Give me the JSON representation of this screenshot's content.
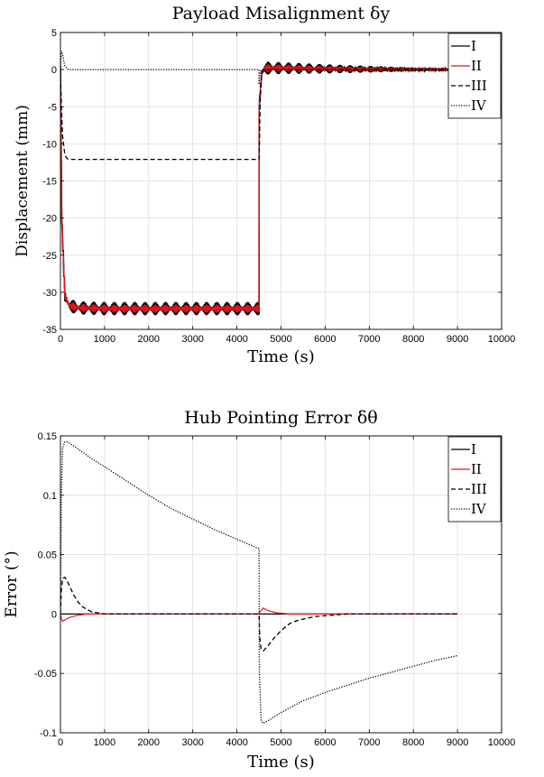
{
  "chart_data": [
    {
      "type": "line",
      "title": "Payload Misalignment δy",
      "xlabel": "Time (s)",
      "ylabel": "Displacement (mm)",
      "xlim": [
        0,
        10000
      ],
      "ylim": [
        -35,
        5
      ],
      "xticks": [
        0,
        1000,
        2000,
        3000,
        4000,
        5000,
        6000,
        7000,
        8000,
        9000,
        10000
      ],
      "yticks": [
        5,
        0,
        -5,
        -10,
        -15,
        -20,
        -25,
        -30,
        -35
      ],
      "grid": true,
      "legend_position": "top-right",
      "series": [
        {
          "name": "I",
          "color": "#000000",
          "style": "solid",
          "oscillating": true,
          "x": [
            0,
            30,
            100,
            200,
            400,
            1000,
            2000,
            3000,
            4500,
            4505,
            4560,
            4620,
            4700,
            5000,
            6000,
            7000,
            8000,
            9000
          ],
          "y": [
            0,
            -20,
            -30.5,
            -31.8,
            -32.1,
            -32.2,
            -32.2,
            -32.2,
            -32.2,
            -5,
            -0.5,
            0.1,
            0.2,
            0.2,
            0.1,
            0.05,
            0.02,
            0.0
          ]
        },
        {
          "name": "II",
          "color": "#e8141c",
          "style": "solid",
          "oscillating": true,
          "x": [
            0,
            30,
            100,
            200,
            400,
            1000,
            2000,
            3000,
            4500,
            4505,
            4560,
            4620,
            4700,
            5000,
            6000,
            7000,
            8000,
            9000
          ],
          "y": [
            0,
            -20,
            -30.5,
            -31.8,
            -32.1,
            -32.2,
            -32.2,
            -32.2,
            -32.2,
            -5,
            -0.5,
            0.1,
            0.2,
            0.2,
            0.1,
            0.05,
            0.02,
            0.0
          ]
        },
        {
          "name": "III",
          "color": "#000000",
          "style": "dashed",
          "x": [
            0,
            20,
            50,
            100,
            150,
            200,
            300,
            4500,
            4502,
            4510,
            4530,
            4560,
            4600,
            5000,
            6000,
            7000,
            8000,
            9000
          ],
          "y": [
            0,
            -5,
            -9,
            -11.5,
            -12,
            -12.1,
            -12.1,
            -12.1,
            -12.1,
            -10,
            -4,
            -1,
            0,
            0,
            0,
            0,
            0,
            0
          ]
        },
        {
          "name": "IV",
          "color": "#000000",
          "style": "dotted",
          "x": [
            0,
            20,
            50,
            80,
            100,
            150,
            200,
            300,
            4500,
            4502,
            4510,
            4530,
            4560,
            4600,
            5000,
            6000,
            7000,
            8000,
            9000
          ],
          "y": [
            0,
            2.5,
            2.0,
            1.0,
            0.5,
            0.1,
            0.0,
            0.0,
            0.0,
            -2.0,
            -1.0,
            -0.3,
            0.0,
            0.0,
            0.0,
            0.0,
            0.0,
            0.0,
            0.0
          ]
        }
      ]
    },
    {
      "type": "line",
      "title": "Hub Pointing Error δθ",
      "xlabel": "Time (s)",
      "ylabel": "Error (°)",
      "xlim": [
        0,
        10000
      ],
      "ylim": [
        -0.1,
        0.15
      ],
      "xticks": [
        0,
        1000,
        2000,
        3000,
        4000,
        5000,
        6000,
        7000,
        8000,
        9000,
        10000
      ],
      "yticks": [
        0.15,
        0.1,
        0.05,
        0,
        -0.05,
        -0.1
      ],
      "grid": true,
      "legend_position": "top-right",
      "series": [
        {
          "name": "I",
          "color": "#000000",
          "style": "solid",
          "x": [
            0,
            9000
          ],
          "y": [
            0,
            0
          ]
        },
        {
          "name": "II",
          "color": "#e8141c",
          "style": "solid",
          "x": [
            0,
            20,
            50,
            100,
            200,
            400,
            600,
            1000,
            4500,
            4520,
            4600,
            4700,
            4900,
            5200,
            9000
          ],
          "y": [
            0,
            -0.004,
            -0.006,
            -0.005,
            -0.003,
            -0.001,
            0,
            0,
            0,
            0.002,
            0.005,
            0.003,
            0.001,
            0,
            0
          ]
        },
        {
          "name": "III",
          "color": "#000000",
          "style": "dashed",
          "x": [
            0,
            20,
            50,
            100,
            150,
            200,
            300,
            400,
            500,
            700,
            1000,
            4500,
            4520,
            4550,
            4600,
            4700,
            4800,
            5000,
            5200,
            5400,
            5800,
            6500,
            9000
          ],
          "y": [
            0,
            0.02,
            0.03,
            0.031,
            0.028,
            0.024,
            0.016,
            0.01,
            0.006,
            0.002,
            0,
            0,
            -0.02,
            -0.03,
            -0.031,
            -0.027,
            -0.022,
            -0.014,
            -0.008,
            -0.005,
            -0.002,
            0,
            0
          ]
        },
        {
          "name": "IV",
          "color": "#000000",
          "style": "dotted",
          "x": [
            0,
            20,
            50,
            100,
            150,
            200,
            400,
            700,
            1000,
            1500,
            2000,
            2500,
            3000,
            3500,
            4000,
            4500,
            4510,
            4550,
            4600,
            4700,
            5000,
            5500,
            6000,
            6500,
            7000,
            7500,
            8000,
            8500,
            9000
          ],
          "y": [
            0,
            0.1,
            0.14,
            0.145,
            0.145,
            0.144,
            0.139,
            0.131,
            0.124,
            0.112,
            0.1,
            0.089,
            0.08,
            0.071,
            0.063,
            0.055,
            -0.05,
            -0.09,
            -0.092,
            -0.09,
            -0.083,
            -0.073,
            -0.066,
            -0.06,
            -0.054,
            -0.049,
            -0.044,
            -0.039,
            -0.035
          ]
        }
      ]
    }
  ]
}
